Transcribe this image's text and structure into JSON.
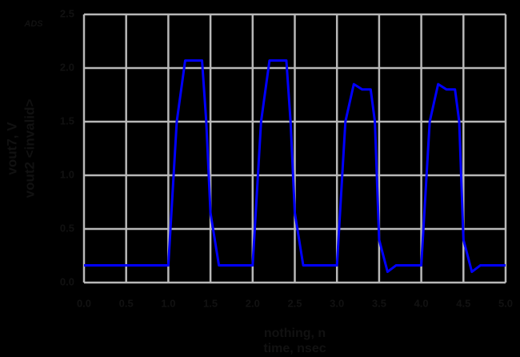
{
  "chart_data": {
    "type": "line",
    "logo": "ADS",
    "y_labels": [
      {
        "text": "vout7, V",
        "color": "#1010e0"
      },
      {
        "text": "vout2 <invalid>",
        "color": "#111111"
      }
    ],
    "x_labels": [
      {
        "text": "nothing, n",
        "color": "#e01010"
      },
      {
        "text": "time, nsec",
        "color": "#1010e0"
      }
    ],
    "x": [
      0.0,
      1.0,
      1.1,
      1.2,
      1.4,
      1.45,
      1.5,
      1.6,
      2.0,
      2.1,
      2.2,
      2.4,
      2.45,
      2.5,
      2.6,
      3.0,
      3.1,
      3.2,
      3.3,
      3.4,
      3.45,
      3.5,
      3.6,
      3.7,
      4.0,
      4.1,
      4.2,
      4.3,
      4.4,
      4.45,
      4.5,
      4.6,
      4.7,
      5.0
    ],
    "series": [
      {
        "name": "vout7",
        "color": "#0000ff",
        "values": [
          0.16,
          0.16,
          1.5,
          2.07,
          2.07,
          1.5,
          0.65,
          0.16,
          0.16,
          1.5,
          2.07,
          2.07,
          1.5,
          0.65,
          0.16,
          0.16,
          1.5,
          1.85,
          1.8,
          1.8,
          1.5,
          0.4,
          0.1,
          0.16,
          0.16,
          1.5,
          1.85,
          1.8,
          1.8,
          1.5,
          0.4,
          0.1,
          0.16,
          0.16
        ]
      }
    ],
    "xlim": [
      0,
      5
    ],
    "ylim": [
      0,
      2.5
    ],
    "xticks": [
      {
        "value": 0,
        "label": "0.0"
      },
      {
        "value": 0.5,
        "label": "0.5"
      },
      {
        "value": 1,
        "label": "1.0"
      },
      {
        "value": 1.5,
        "label": "1.5"
      },
      {
        "value": 2,
        "label": "2.0"
      },
      {
        "value": 2.5,
        "label": "2.5"
      },
      {
        "value": 3,
        "label": "3.0"
      },
      {
        "value": 3.5,
        "label": "3.5"
      },
      {
        "value": 4,
        "label": "4.0"
      },
      {
        "value": 4.5,
        "label": "4.5"
      },
      {
        "value": 5,
        "label": "5.0"
      }
    ],
    "yticks": [
      {
        "value": 0,
        "label": "0.0"
      },
      {
        "value": 0.5,
        "label": "0.5"
      },
      {
        "value": 1,
        "label": "1.0"
      },
      {
        "value": 1.5,
        "label": "1.5"
      },
      {
        "value": 2,
        "label": "2.0"
      },
      {
        "value": 2.5,
        "label": "2.5"
      }
    ],
    "grid": true
  }
}
